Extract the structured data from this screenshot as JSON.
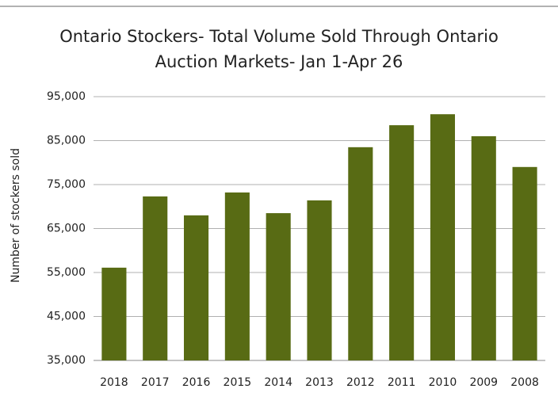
{
  "chart_data": {
    "type": "bar",
    "title": [
      "Ontario Stockers- Total Volume Sold Through Ontario",
      "Auction Markets- Jan 1-Apr 26"
    ],
    "y_label": "Number of stockers sold",
    "categories": [
      "2018",
      "2017",
      "2016",
      "2015",
      "2014",
      "2013",
      "2012",
      "2011",
      "2010",
      "2009",
      "2008"
    ],
    "values": [
      56100,
      72300,
      68000,
      73200,
      68500,
      71400,
      83500,
      88500,
      91000,
      86000,
      79000
    ],
    "color": "#586b14",
    "ylim": [
      35000,
      95000
    ],
    "yticks": [
      {
        "value": 35000,
        "label": "35,000"
      },
      {
        "value": 45000,
        "label": "45,000"
      },
      {
        "value": 55000,
        "label": "55,000"
      },
      {
        "value": 65000,
        "label": "65,000"
      },
      {
        "value": 75000,
        "label": "75,000"
      },
      {
        "value": 85000,
        "label": "85,000"
      },
      {
        "value": 95000,
        "label": "95,000"
      }
    ],
    "grid": true
  }
}
